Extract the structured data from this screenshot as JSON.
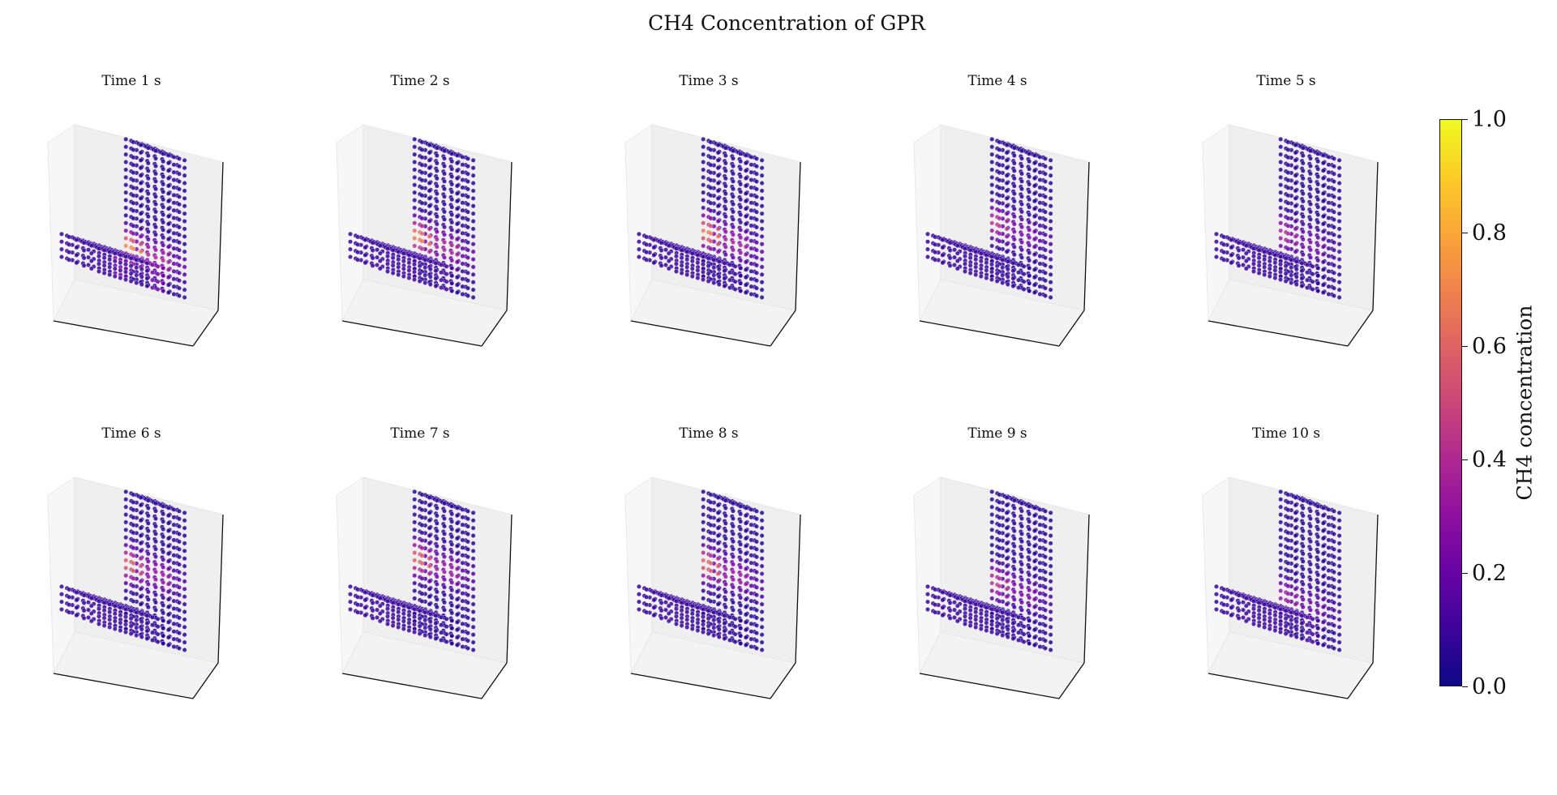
{
  "chart_data": {
    "type": "scatter",
    "title": "CH4 Concentration of GPR",
    "panels": [
      {
        "title": "Time 1 s",
        "peak": 0.72,
        "peak_height": 0.22
      },
      {
        "title": "Time 2 s",
        "peak": 0.7,
        "peak_height": 0.3
      },
      {
        "title": "Time 3 s",
        "peak": 0.68,
        "peak_height": 0.33
      },
      {
        "title": "Time 4 s",
        "peak": 0.45,
        "peak_height": 0.4
      },
      {
        "title": "Time 5 s",
        "peak": 0.4,
        "peak_height": 0.32
      },
      {
        "title": "Time 6 s",
        "peak": 0.6,
        "peak_height": 0.48
      },
      {
        "title": "Time 7 s",
        "peak": 0.62,
        "peak_height": 0.52
      },
      {
        "title": "Time 8 s",
        "peak": 0.62,
        "peak_height": 0.48
      },
      {
        "title": "Time 9 s",
        "peak": 0.45,
        "peak_height": 0.35
      },
      {
        "title": "Time 10 s",
        "peak": 0.35,
        "peak_height": 0.25
      }
    ],
    "colorbar": {
      "label": "CH4 concentration",
      "range": [
        0.0,
        1.0
      ],
      "ticks": [
        "0.0",
        "0.2",
        "0.4",
        "0.6",
        "0.8",
        "1.0"
      ],
      "colormap": "plasma"
    }
  }
}
